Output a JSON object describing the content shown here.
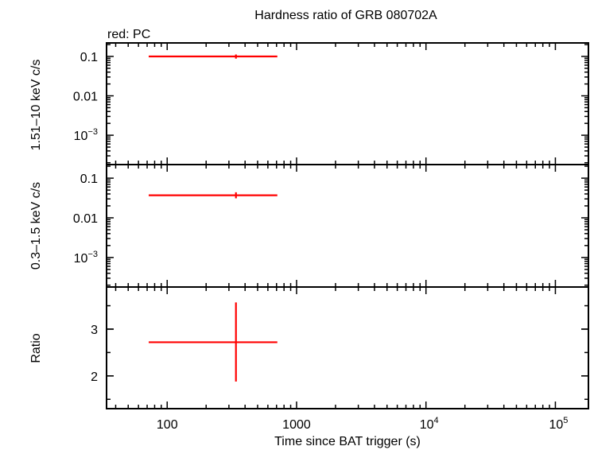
{
  "chart_data": {
    "type": "scatter",
    "title": "Hardness ratio of GRB 080702A",
    "legend_note": "red: PC",
    "xlabel": "Time since BAT trigger (s)",
    "xscale": "log",
    "xlim": [
      34,
      180000
    ],
    "x_tick_labels": [
      {
        "value": 100,
        "base": "100",
        "exp": ""
      },
      {
        "value": 1000,
        "base": "1000",
        "exp": ""
      },
      {
        "value": 10000,
        "base": "10",
        "exp": "4"
      },
      {
        "value": 100000,
        "base": "10",
        "exp": "5"
      }
    ],
    "panels": [
      {
        "ylabel": "1.51–10 keV c/s",
        "yscale": "log",
        "ylim": [
          0.00018,
          0.22
        ],
        "y_tick_labels": [
          {
            "value": 0.1,
            "base": "0.1",
            "exp": ""
          },
          {
            "value": 0.01,
            "base": "0.01",
            "exp": ""
          },
          {
            "value": 0.001,
            "base": "10",
            "exp": "−3"
          }
        ],
        "series": [
          {
            "color": "#ff0000",
            "points": [
              {
                "x": 340,
                "xlo": 72,
                "xhi": 710,
                "y": 0.1,
                "ylo": 0.088,
                "yhi": 0.112
              }
            ]
          }
        ]
      },
      {
        "ylabel": "0.3–1.5 keV c/s",
        "yscale": "log",
        "ylim": [
          0.00018,
          0.22
        ],
        "y_tick_labels": [
          {
            "value": 0.1,
            "base": "0.1",
            "exp": ""
          },
          {
            "value": 0.01,
            "base": "0.01",
            "exp": ""
          },
          {
            "value": 0.001,
            "base": "10",
            "exp": "−3"
          }
        ],
        "series": [
          {
            "color": "#ff0000",
            "points": [
              {
                "x": 340,
                "xlo": 72,
                "xhi": 710,
                "y": 0.037,
                "ylo": 0.031,
                "yhi": 0.044
              }
            ]
          }
        ]
      },
      {
        "ylabel": "Ratio",
        "yscale": "linear",
        "ylim": [
          1.3,
          3.9
        ],
        "y_tick_labels": [
          {
            "value": 2,
            "base": "2",
            "exp": ""
          },
          {
            "value": 3,
            "base": "3",
            "exp": ""
          }
        ],
        "series": [
          {
            "color": "#ff0000",
            "points": [
              {
                "x": 340,
                "xlo": 72,
                "xhi": 710,
                "y": 2.72,
                "ylo": 1.88,
                "yhi": 3.57
              }
            ]
          }
        ]
      }
    ]
  }
}
